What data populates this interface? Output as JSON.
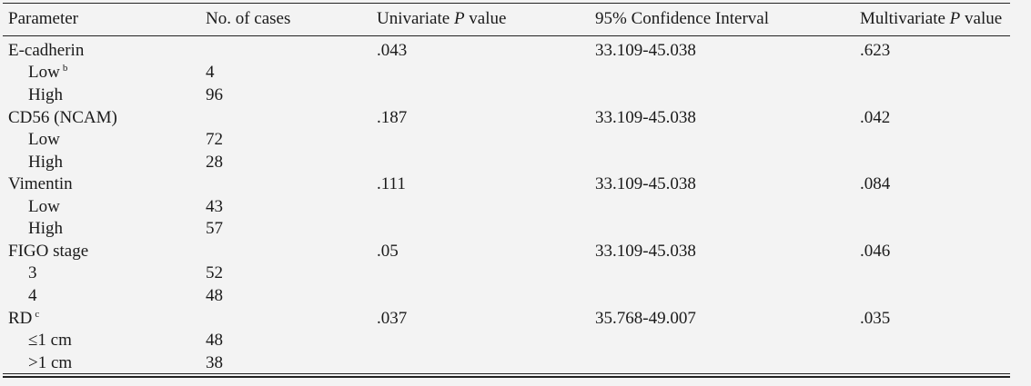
{
  "table": {
    "headers": {
      "parameter": "Parameter",
      "cases": "No. of cases",
      "univariate_prefix": "Univariate ",
      "univariate_p": "P",
      "univariate_suffix": " value",
      "ci": "95% Confidence Interval",
      "multivariate_prefix": "Multivariate ",
      "multivariate_p": "P",
      "multivariate_suffix": " value"
    },
    "rows": [
      {
        "parameter": "E-cadherin",
        "sup": "",
        "cases": "",
        "univariate": ".043",
        "ci": "33.109-45.038",
        "multivariate": ".623"
      },
      {
        "parameter": "Low",
        "sup": "b",
        "cases": "4",
        "univariate": "",
        "ci": "",
        "multivariate": ""
      },
      {
        "parameter": "High",
        "sup": "",
        "cases": "96",
        "univariate": "",
        "ci": "",
        "multivariate": ""
      },
      {
        "parameter": "CD56 (NCAM)",
        "sup": "",
        "cases": "",
        "univariate": ".187",
        "ci": "33.109-45.038",
        "multivariate": ".042"
      },
      {
        "parameter": "Low",
        "sup": "",
        "cases": "72",
        "univariate": "",
        "ci": "",
        "multivariate": ""
      },
      {
        "parameter": "High",
        "sup": "",
        "cases": "28",
        "univariate": "",
        "ci": "",
        "multivariate": ""
      },
      {
        "parameter": "Vimentin",
        "sup": "",
        "cases": "",
        "univariate": ".111",
        "ci": "33.109-45.038",
        "multivariate": ".084"
      },
      {
        "parameter": "Low",
        "sup": "",
        "cases": "43",
        "univariate": "",
        "ci": "",
        "multivariate": ""
      },
      {
        "parameter": "High",
        "sup": "",
        "cases": "57",
        "univariate": "",
        "ci": "",
        "multivariate": ""
      },
      {
        "parameter": "FIGO stage",
        "sup": "",
        "cases": "",
        "univariate": ".05",
        "ci": "33.109-45.038",
        "multivariate": ".046"
      },
      {
        "parameter": "3",
        "sup": "",
        "cases": "52",
        "univariate": "",
        "ci": "",
        "multivariate": ""
      },
      {
        "parameter": "4",
        "sup": "",
        "cases": "48",
        "univariate": "",
        "ci": "",
        "multivariate": ""
      },
      {
        "parameter": "RD",
        "sup": "c",
        "cases": "",
        "univariate": ".037",
        "ci": "35.768-49.007",
        "multivariate": ".035"
      },
      {
        "parameter": "≤1 cm",
        "sup": "",
        "cases": "48",
        "univariate": "",
        "ci": "",
        "multivariate": ""
      },
      {
        "parameter": ">1 cm",
        "sup": "",
        "cases": "38",
        "univariate": "",
        "ci": "",
        "multivariate": ""
      }
    ]
  }
}
